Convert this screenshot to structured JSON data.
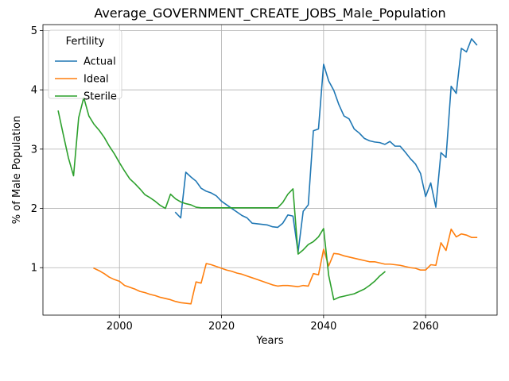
{
  "chart_data": {
    "type": "line",
    "title": "Average_GOVERNMENT_CREATE_JOBS_Male_Population",
    "xlabel": "Years",
    "ylabel": "% of Male Population",
    "xlim": [
      1985,
      2074
    ],
    "ylim": [
      0.2,
      5.1
    ],
    "xticks": [
      2000,
      2020,
      2040,
      2060
    ],
    "yticks": [
      1,
      2,
      3,
      4,
      5
    ],
    "grid": true,
    "legend": {
      "title": "Fertility",
      "placement": "top-left"
    },
    "series": [
      {
        "name": "Actual",
        "color": "#1f77b4",
        "points": [
          [
            2011,
            1.93
          ],
          [
            2012,
            1.84
          ],
          [
            2013,
            2.61
          ],
          [
            2014,
            2.53
          ],
          [
            2015,
            2.46
          ],
          [
            2016,
            2.34
          ],
          [
            2017,
            2.29
          ],
          [
            2018,
            2.26
          ],
          [
            2019,
            2.21
          ],
          [
            2020,
            2.12
          ],
          [
            2021,
            2.06
          ],
          [
            2022,
            2.0
          ],
          [
            2023,
            1.94
          ],
          [
            2024,
            1.88
          ],
          [
            2025,
            1.84
          ],
          [
            2026,
            1.75
          ],
          [
            2027,
            1.74
          ],
          [
            2028,
            1.73
          ],
          [
            2029,
            1.72
          ],
          [
            2030,
            1.69
          ],
          [
            2031,
            1.68
          ],
          [
            2032,
            1.75
          ],
          [
            2033,
            1.89
          ],
          [
            2034,
            1.87
          ],
          [
            2035,
            1.26
          ],
          [
            2036,
            1.95
          ],
          [
            2037,
            2.06
          ],
          [
            2038,
            3.31
          ],
          [
            2039,
            3.34
          ],
          [
            2040,
            4.43
          ],
          [
            2041,
            4.15
          ],
          [
            2042,
            3.99
          ],
          [
            2043,
            3.75
          ],
          [
            2044,
            3.56
          ],
          [
            2045,
            3.51
          ],
          [
            2046,
            3.34
          ],
          [
            2047,
            3.27
          ],
          [
            2048,
            3.18
          ],
          [
            2049,
            3.14
          ],
          [
            2050,
            3.12
          ],
          [
            2051,
            3.11
          ],
          [
            2052,
            3.08
          ],
          [
            2053,
            3.13
          ],
          [
            2054,
            3.05
          ],
          [
            2055,
            3.05
          ],
          [
            2056,
            2.95
          ],
          [
            2057,
            2.84
          ],
          [
            2058,
            2.75
          ],
          [
            2059,
            2.59
          ],
          [
            2060,
            2.2
          ],
          [
            2061,
            2.43
          ],
          [
            2062,
            2.02
          ],
          [
            2063,
            2.94
          ],
          [
            2064,
            2.86
          ],
          [
            2065,
            4.06
          ],
          [
            2066,
            3.94
          ],
          [
            2067,
            4.7
          ],
          [
            2068,
            4.64
          ],
          [
            2069,
            4.86
          ],
          [
            2070,
            4.76
          ]
        ]
      },
      {
        "name": "Ideal",
        "color": "#ff7f0e",
        "points": [
          [
            1995,
            0.99
          ],
          [
            1996,
            0.95
          ],
          [
            1997,
            0.9
          ],
          [
            1998,
            0.84
          ],
          [
            1999,
            0.8
          ],
          [
            2000,
            0.77
          ],
          [
            2001,
            0.7
          ],
          [
            2002,
            0.67
          ],
          [
            2003,
            0.64
          ],
          [
            2004,
            0.6
          ],
          [
            2005,
            0.58
          ],
          [
            2006,
            0.55
          ],
          [
            2007,
            0.53
          ],
          [
            2008,
            0.5
          ],
          [
            2009,
            0.48
          ],
          [
            2010,
            0.46
          ],
          [
            2011,
            0.43
          ],
          [
            2012,
            0.41
          ],
          [
            2013,
            0.4
          ],
          [
            2014,
            0.39
          ],
          [
            2015,
            0.76
          ],
          [
            2016,
            0.74
          ],
          [
            2017,
            1.07
          ],
          [
            2018,
            1.05
          ],
          [
            2019,
            1.02
          ],
          [
            2020,
            0.99
          ],
          [
            2021,
            0.96
          ],
          [
            2022,
            0.94
          ],
          [
            2023,
            0.91
          ],
          [
            2024,
            0.89
          ],
          [
            2025,
            0.86
          ],
          [
            2026,
            0.83
          ],
          [
            2027,
            0.8
          ],
          [
            2028,
            0.77
          ],
          [
            2029,
            0.74
          ],
          [
            2030,
            0.71
          ],
          [
            2031,
            0.69
          ],
          [
            2032,
            0.7
          ],
          [
            2033,
            0.7
          ],
          [
            2034,
            0.69
          ],
          [
            2035,
            0.68
          ],
          [
            2036,
            0.7
          ],
          [
            2037,
            0.69
          ],
          [
            2038,
            0.9
          ],
          [
            2039,
            0.88
          ],
          [
            2040,
            1.31
          ],
          [
            2041,
            1.03
          ],
          [
            2042,
            1.24
          ],
          [
            2043,
            1.23
          ],
          [
            2044,
            1.2
          ],
          [
            2045,
            1.18
          ],
          [
            2046,
            1.16
          ],
          [
            2047,
            1.14
          ],
          [
            2048,
            1.12
          ],
          [
            2049,
            1.1
          ],
          [
            2050,
            1.1
          ],
          [
            2051,
            1.08
          ],
          [
            2052,
            1.06
          ],
          [
            2053,
            1.06
          ],
          [
            2054,
            1.05
          ],
          [
            2055,
            1.04
          ],
          [
            2056,
            1.02
          ],
          [
            2057,
            1.0
          ],
          [
            2058,
            0.99
          ],
          [
            2059,
            0.96
          ],
          [
            2060,
            0.96
          ],
          [
            2061,
            1.05
          ],
          [
            2062,
            1.04
          ],
          [
            2063,
            1.42
          ],
          [
            2064,
            1.29
          ],
          [
            2065,
            1.65
          ],
          [
            2066,
            1.52
          ],
          [
            2067,
            1.57
          ],
          [
            2068,
            1.55
          ],
          [
            2069,
            1.51
          ],
          [
            2070,
            1.51
          ]
        ]
      },
      {
        "name": "Sterile",
        "color": "#2ca02c",
        "points": [
          [
            1988,
            3.64
          ],
          [
            1989,
            3.24
          ],
          [
            1990,
            2.85
          ],
          [
            1991,
            2.55
          ],
          [
            1992,
            3.53
          ],
          [
            1993,
            3.87
          ],
          [
            1994,
            3.56
          ],
          [
            1995,
            3.42
          ],
          [
            1996,
            3.32
          ],
          [
            1997,
            3.2
          ],
          [
            1998,
            3.05
          ],
          [
            1999,
            2.92
          ],
          [
            2000,
            2.77
          ],
          [
            2001,
            2.63
          ],
          [
            2002,
            2.5
          ],
          [
            2003,
            2.42
          ],
          [
            2004,
            2.33
          ],
          [
            2005,
            2.23
          ],
          [
            2006,
            2.18
          ],
          [
            2007,
            2.12
          ],
          [
            2008,
            2.05
          ],
          [
            2009,
            2.0
          ],
          [
            2010,
            2.24
          ],
          [
            2011,
            2.16
          ],
          [
            2012,
            2.11
          ],
          [
            2013,
            2.08
          ],
          [
            2014,
            2.06
          ],
          [
            2015,
            2.02
          ],
          [
            2016,
            2.01
          ],
          [
            2017,
            2.01
          ],
          [
            2018,
            2.01
          ],
          [
            2019,
            2.01
          ],
          [
            2020,
            2.01
          ],
          [
            2021,
            2.01
          ],
          [
            2022,
            2.01
          ],
          [
            2023,
            2.01
          ],
          [
            2024,
            2.01
          ],
          [
            2025,
            2.01
          ],
          [
            2026,
            2.01
          ],
          [
            2027,
            2.01
          ],
          [
            2028,
            2.01
          ],
          [
            2029,
            2.01
          ],
          [
            2030,
            2.01
          ],
          [
            2031,
            2.01
          ],
          [
            2032,
            2.1
          ],
          [
            2033,
            2.24
          ],
          [
            2034,
            2.33
          ],
          [
            2035,
            1.23
          ],
          [
            2036,
            1.3
          ],
          [
            2037,
            1.39
          ],
          [
            2038,
            1.44
          ],
          [
            2039,
            1.52
          ],
          [
            2040,
            1.66
          ],
          [
            2041,
            0.87
          ],
          [
            2042,
            0.46
          ],
          [
            2043,
            0.5
          ],
          [
            2044,
            0.52
          ],
          [
            2045,
            0.54
          ],
          [
            2046,
            0.56
          ],
          [
            2047,
            0.6
          ],
          [
            2048,
            0.64
          ],
          [
            2049,
            0.7
          ],
          [
            2050,
            0.77
          ],
          [
            2051,
            0.86
          ],
          [
            2052,
            0.93
          ]
        ]
      }
    ]
  }
}
